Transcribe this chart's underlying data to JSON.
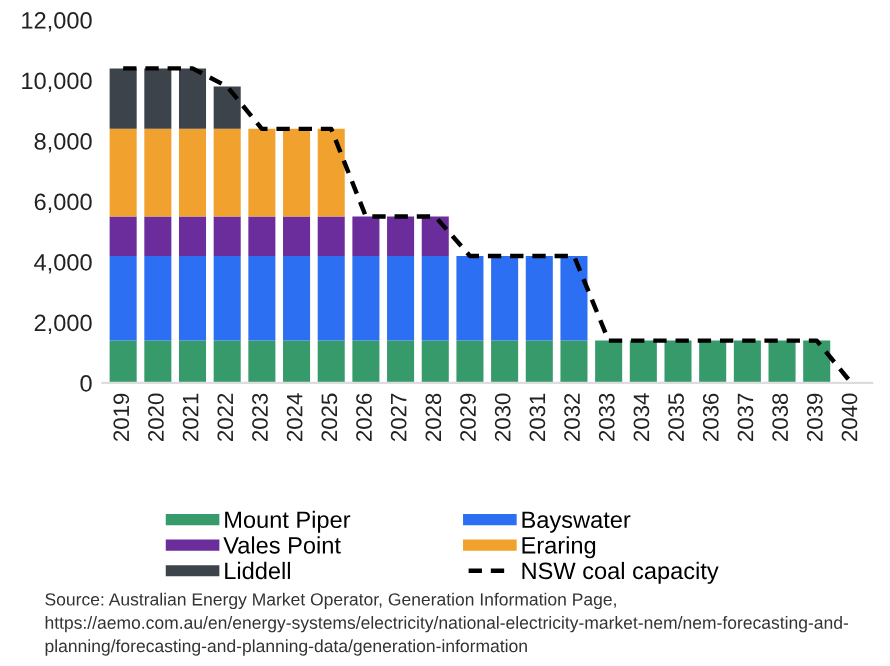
{
  "chart_data": {
    "type": "bar",
    "stacked": true,
    "categories": [
      "2019",
      "2020",
      "2021",
      "2022",
      "2023",
      "2024",
      "2025",
      "2026",
      "2027",
      "2028",
      "2029",
      "2030",
      "2031",
      "2032",
      "2033",
      "2034",
      "2035",
      "2036",
      "2037",
      "2038",
      "2039",
      "2040"
    ],
    "series": [
      {
        "name": "Mount Piper",
        "color": "#379a6b",
        "values": [
          1400,
          1400,
          1400,
          1400,
          1400,
          1400,
          1400,
          1400,
          1400,
          1400,
          1400,
          1400,
          1400,
          1400,
          1400,
          1400,
          1400,
          1400,
          1400,
          1400,
          1400,
          null
        ]
      },
      {
        "name": "Bayswater",
        "color": "#2d6ff2",
        "values": [
          2800,
          2800,
          2800,
          2800,
          2800,
          2800,
          2800,
          2800,
          2800,
          2800,
          2800,
          2800,
          2800,
          2800,
          null,
          null,
          null,
          null,
          null,
          null,
          null,
          null
        ]
      },
      {
        "name": "Vales Point",
        "color": "#6c2d9c",
        "values": [
          1300,
          1300,
          1300,
          1300,
          1300,
          1300,
          1300,
          1300,
          1300,
          1300,
          null,
          null,
          null,
          null,
          null,
          null,
          null,
          null,
          null,
          null,
          null,
          null
        ]
      },
      {
        "name": "Eraring",
        "color": "#f0a12e",
        "values": [
          2900,
          2900,
          2900,
          2900,
          2900,
          2900,
          2900,
          null,
          null,
          null,
          null,
          null,
          null,
          null,
          null,
          null,
          null,
          null,
          null,
          null,
          null,
          null
        ]
      },
      {
        "name": "Liddell",
        "color": "#3c434b",
        "values": [
          2000,
          2000,
          2000,
          1400,
          null,
          null,
          null,
          null,
          null,
          null,
          null,
          null,
          null,
          null,
          null,
          null,
          null,
          null,
          null,
          null,
          null,
          null
        ]
      },
      {
        "name": "NSW coal capacity",
        "type": "line",
        "color": "#000000",
        "line_style": "dashed",
        "values": [
          10400,
          10400,
          10400,
          9800,
          8400,
          8400,
          8400,
          5500,
          5500,
          5500,
          4200,
          4200,
          4200,
          4200,
          1400,
          1400,
          1400,
          1400,
          1400,
          1400,
          1400,
          0
        ]
      }
    ],
    "ylim": [
      0,
      12000
    ],
    "yticks": [
      {
        "value": 0,
        "label": "0"
      },
      {
        "value": 2000,
        "label": "2,000"
      },
      {
        "value": 4000,
        "label": "4,000"
      },
      {
        "value": 6000,
        "label": "6,000"
      },
      {
        "value": 8000,
        "label": "8,000"
      },
      {
        "value": 10000,
        "label": "10,000"
      },
      {
        "value": 12000,
        "label": "12,000"
      }
    ],
    "grid": false,
    "legend": "bottom",
    "annotations": [
      "Source: Australian Energy Market Operator, Generation Information Page,",
      "https://aemo.com.au/en/energy-systems/electricity/national-electricity-market-nem/nem-forecasting-and-planning/forecasting-and-planning-data/generation-information"
    ]
  }
}
